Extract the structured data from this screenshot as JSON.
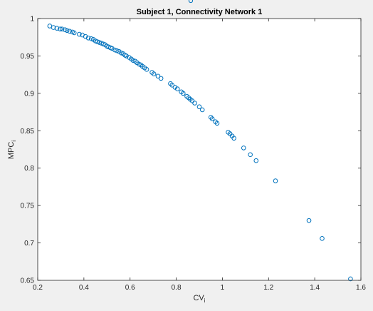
{
  "window": {
    "background": "#f0f0f0"
  },
  "chart_data": {
    "type": "scatter",
    "title": "Subject 1, Connectivity Network 1",
    "xlabel": "CV",
    "xlabel_sub": "i",
    "ylabel": "MPC",
    "ylabel_sub": "i",
    "xlim": [
      0.2,
      1.6
    ],
    "ylim": [
      0.65,
      1.0
    ],
    "xticks": [
      0.2,
      0.4,
      0.6,
      0.8,
      1.0,
      1.2,
      1.4,
      1.6
    ],
    "xtick_labels": [
      "0.2",
      "0.4",
      "0.6",
      "0.8",
      "1",
      "1.2",
      "1.4",
      "1.6"
    ],
    "yticks": [
      0.65,
      0.7,
      0.75,
      0.8,
      0.85,
      0.9,
      0.95,
      1.0
    ],
    "ytick_labels": [
      "0.65",
      "0.7",
      "0.75",
      "0.8",
      "0.85",
      "0.9",
      "0.95",
      "1"
    ],
    "grid": false,
    "marker": "circle-open",
    "marker_color": "#0072bd",
    "axes_color": "#262626",
    "series": [
      {
        "x": [
          0.252,
          0.268,
          0.283,
          0.297,
          0.305,
          0.318,
          0.327,
          0.338,
          0.35,
          0.358,
          0.38,
          0.393,
          0.407,
          0.419,
          0.432,
          0.441,
          0.45,
          0.458,
          0.467,
          0.476,
          0.484,
          0.492,
          0.5,
          0.507,
          0.515,
          0.522,
          0.534,
          0.543,
          0.552,
          0.562,
          0.57,
          0.578,
          0.584,
          0.596,
          0.605,
          0.613,
          0.622,
          0.63,
          0.639,
          0.647,
          0.654,
          0.663,
          0.672,
          0.695,
          0.703,
          0.721,
          0.734,
          0.775,
          0.782,
          0.795,
          0.805,
          0.822,
          0.83,
          0.846,
          0.854,
          0.861,
          0.869,
          0.88,
          0.9,
          0.913,
          0.95,
          0.956,
          0.97,
          0.977,
          1.025,
          1.033,
          1.042,
          1.05,
          1.092,
          1.121,
          1.146,
          1.23,
          1.375,
          1.432,
          1.555
        ],
        "y": [
          0.99,
          0.988,
          0.987,
          0.986,
          0.986,
          0.985,
          0.984,
          0.983,
          0.982,
          0.981,
          0.979,
          0.978,
          0.976,
          0.974,
          0.973,
          0.972,
          0.97,
          0.969,
          0.968,
          0.967,
          0.966,
          0.965,
          0.963,
          0.962,
          0.961,
          0.96,
          0.958,
          0.957,
          0.956,
          0.954,
          0.953,
          0.951,
          0.95,
          0.948,
          0.946,
          0.944,
          0.943,
          0.941,
          0.939,
          0.938,
          0.936,
          0.934,
          0.932,
          0.928,
          0.926,
          0.923,
          0.92,
          0.913,
          0.911,
          0.908,
          0.906,
          0.902,
          0.9,
          0.896,
          0.894,
          0.892,
          0.89,
          0.887,
          0.882,
          0.878,
          0.868,
          0.866,
          0.862,
          0.86,
          0.848,
          0.846,
          0.843,
          0.84,
          0.827,
          0.818,
          0.81,
          0.783,
          0.73,
          0.706,
          0.652
        ]
      }
    ]
  }
}
